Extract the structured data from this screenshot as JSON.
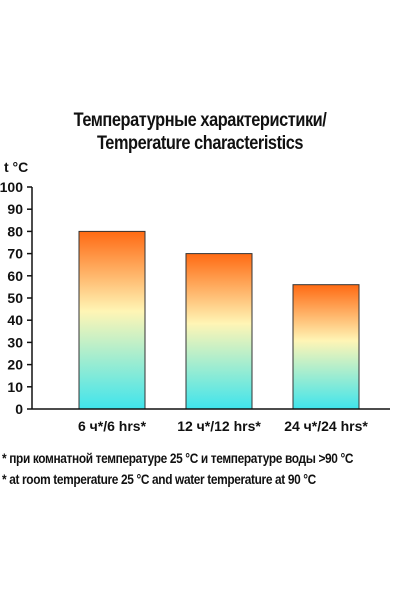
{
  "chart_data": {
    "type": "bar",
    "title": "Температурные характеристики/",
    "subtitle": "Temperature characteristics",
    "xlabel": "",
    "ylabel": "t °C",
    "categories": [
      "6 ч*/6 hrs*",
      "12 ч*/12 hrs*",
      "24 ч*/24 hrs*"
    ],
    "values": [
      80,
      70,
      56
    ],
    "ylim": [
      0,
      100
    ],
    "yticks": [
      0,
      10,
      20,
      30,
      40,
      50,
      60,
      70,
      80,
      90,
      100
    ],
    "grid": false,
    "legend": "none",
    "bar_gradient": {
      "top": "#ff6a13",
      "middle": "#fff5b5",
      "bottom": "#3fe4ec"
    },
    "axis_color": "#111111"
  },
  "footnotes": [
    "* при комнатной температуре 25 °C и температуре воды >90 °C",
    "* at room temperature 25 °C and water temperature at 90 °C"
  ]
}
